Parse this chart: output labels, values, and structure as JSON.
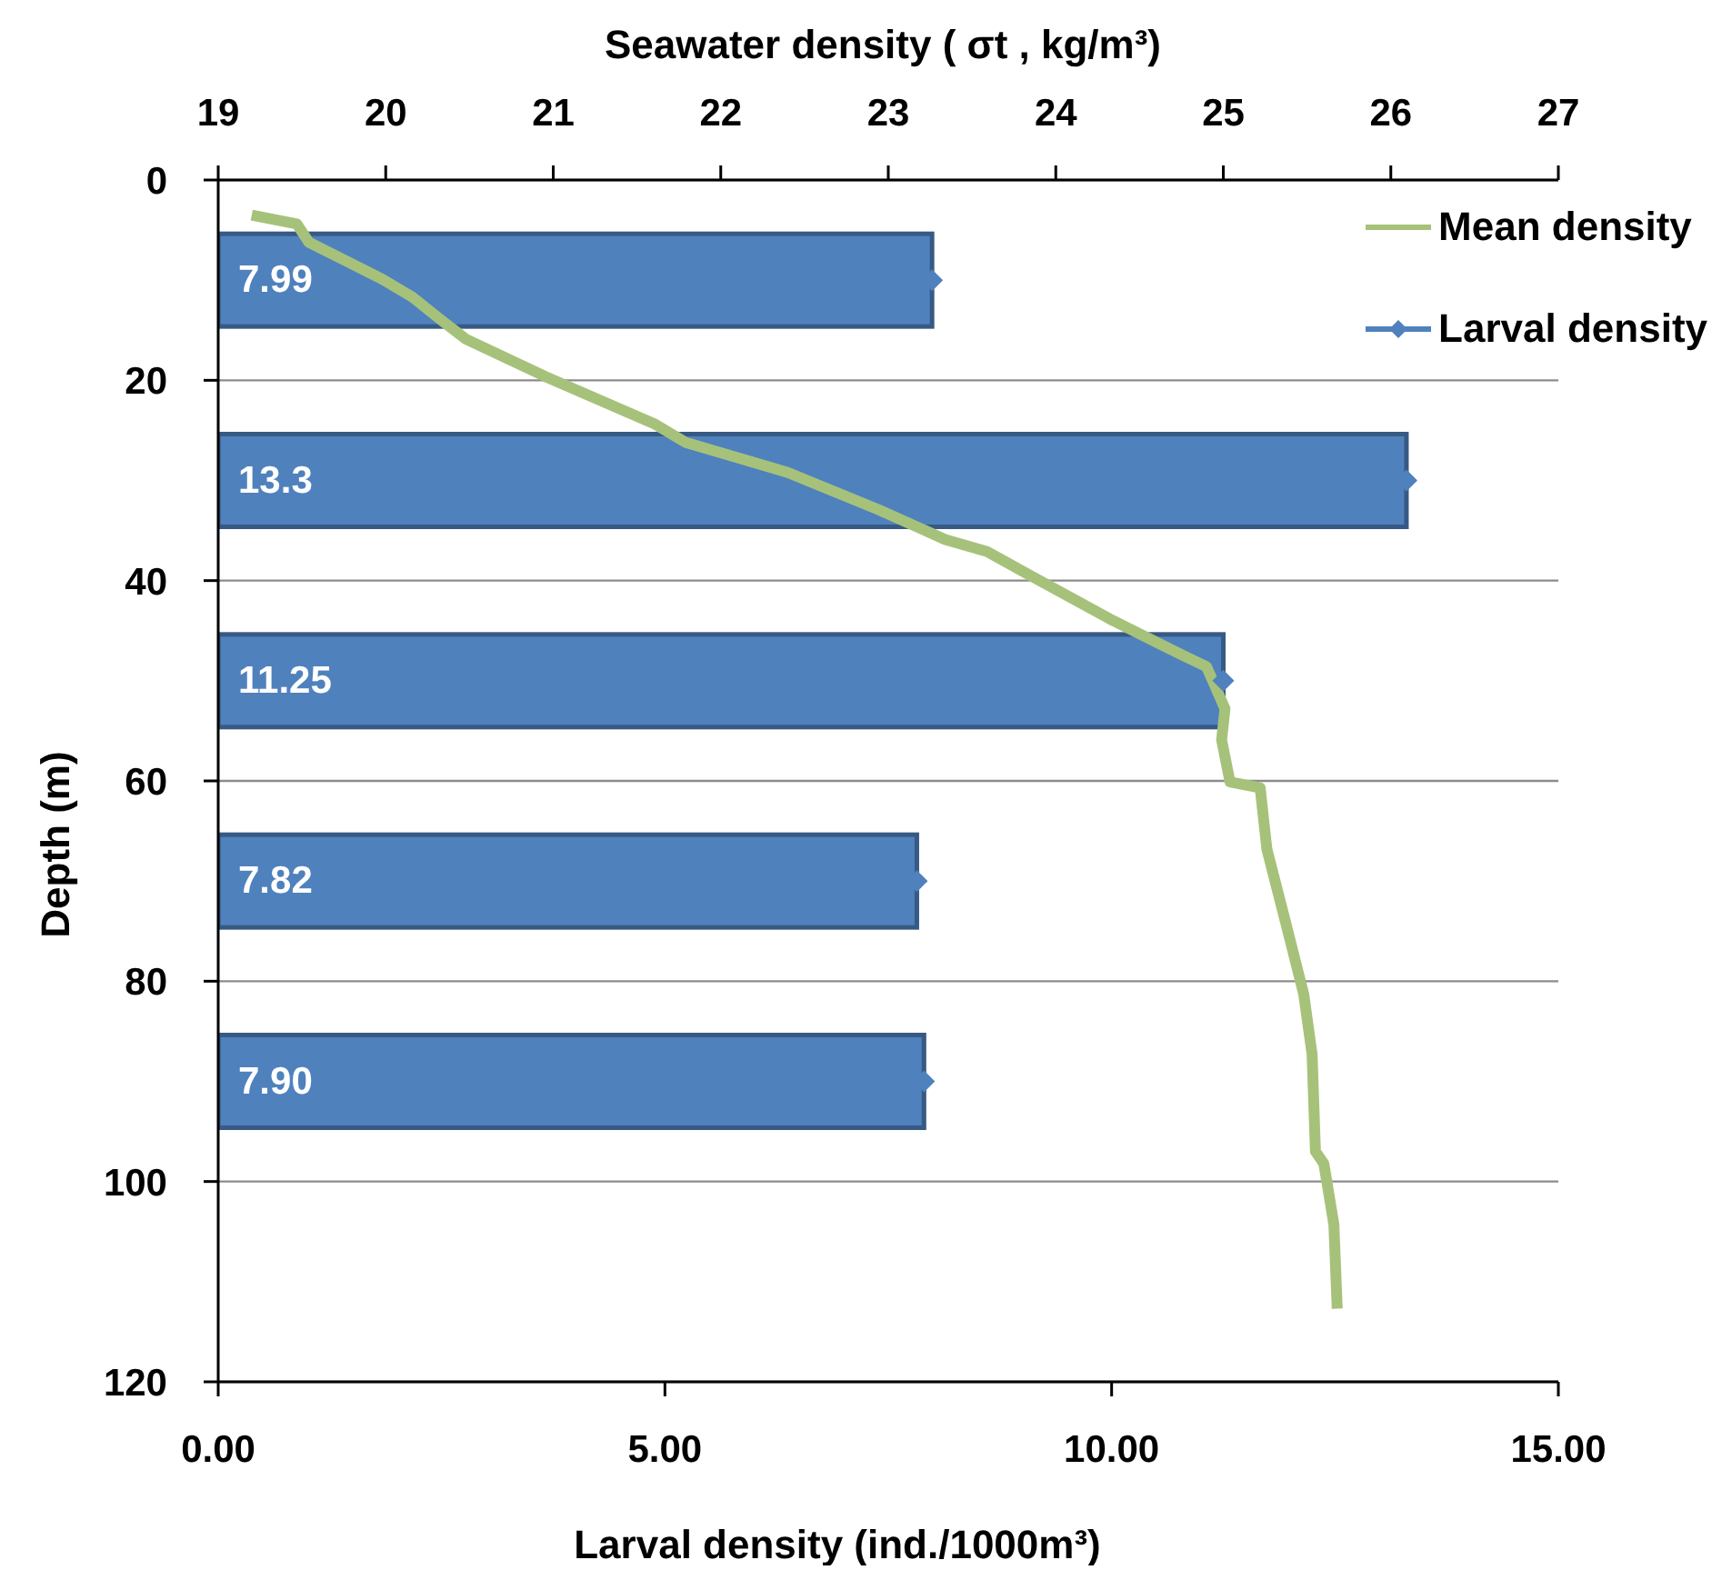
{
  "chart_data": {
    "type": "bar",
    "orientation": "horizontal",
    "xlabel": "Larval density (ind./1000m³)",
    "x2label": "Seawater density ( σt , kg/m³)",
    "ylabel": "Depth (m)",
    "xlim": [
      0,
      15
    ],
    "xticks": [
      {
        "value": 0,
        "label": "0.00"
      },
      {
        "value": 5,
        "label": "5.00"
      },
      {
        "value": 10,
        "label": "10.00"
      },
      {
        "value": 15,
        "label": "15.00"
      }
    ],
    "x2lim": [
      19,
      27
    ],
    "x2ticks": [
      19,
      20,
      21,
      22,
      23,
      24,
      25,
      26,
      27
    ],
    "ylim": [
      120,
      0
    ],
    "yticks": [
      0,
      20,
      40,
      60,
      80,
      100,
      120
    ],
    "grid": "y",
    "legend": "top right",
    "series": [
      {
        "name": "Mean density",
        "type": "line",
        "axis": "x2",
        "color": "#a6c27a",
        "x": [
          3.5,
          4.4,
          6.2,
          9.9,
          11.7,
          14.1,
          15.9,
          19.6,
          24.4,
          26.2,
          29.2,
          32.9,
          35.9,
          37.1,
          39.5,
          43.8,
          47.4,
          48.6,
          52.8,
          55.9,
          60.1,
          60.7,
          66.8,
          74.0,
          81.3,
          87.3,
          97.0,
          98.2,
          104.3,
          112.7
        ],
        "values": [
          19.2,
          19.47,
          19.54,
          19.98,
          20.16,
          20.34,
          20.48,
          20.95,
          21.61,
          21.79,
          22.4,
          22.94,
          23.34,
          23.59,
          23.85,
          24.32,
          24.75,
          24.9,
          25.01,
          24.99,
          25.04,
          25.22,
          25.26,
          25.37,
          25.48,
          25.53,
          25.55,
          25.6,
          25.66,
          25.68
        ]
      },
      {
        "name": "Larval density",
        "type": "scatter",
        "color": "#4f81bd",
        "marker": "diamond",
        "x": [
          10,
          30,
          50,
          70,
          90
        ],
        "values": [
          7.99,
          13.3,
          11.25,
          7.82,
          7.9
        ]
      },
      {
        "color": "#4f81bd",
        "x": [
          10,
          30,
          50,
          70,
          90
        ],
        "values": [
          7.99,
          13.3,
          11.25,
          7.82,
          7.9
        ],
        "value_labels": [
          "7.99",
          "13.3",
          "11.25",
          "7.82",
          "7.90"
        ]
      }
    ]
  }
}
